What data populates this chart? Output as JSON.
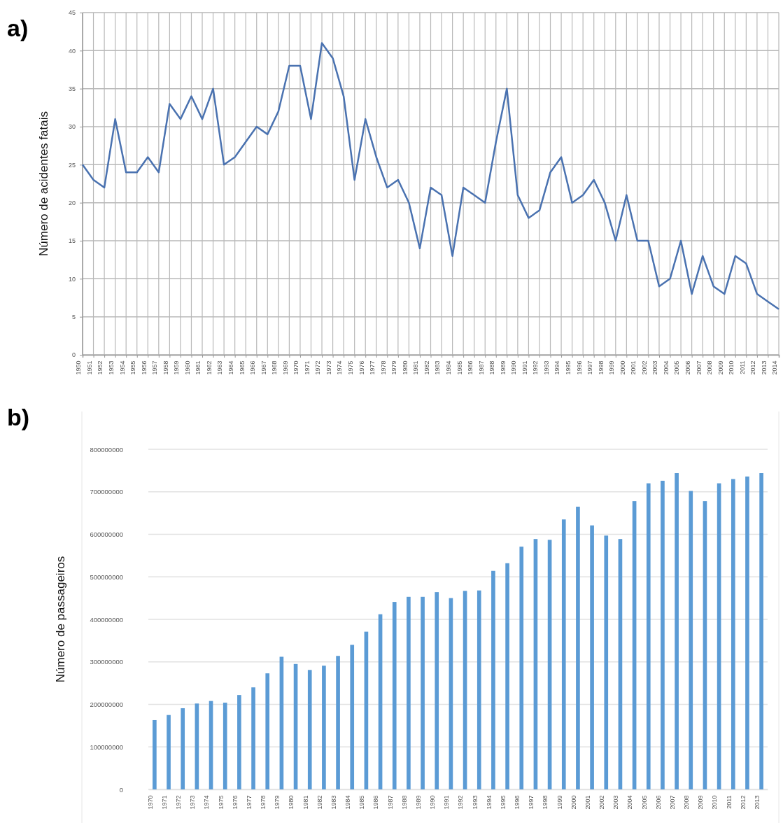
{
  "chart_data": [
    {
      "type": "line",
      "title": "a)",
      "ylabel": "Número de acidentes fatais",
      "grid": true,
      "ylim": [
        0,
        45
      ],
      "yticks": [
        0,
        5,
        10,
        15,
        20,
        25,
        30,
        35,
        40,
        45
      ],
      "categories": [
        "1950",
        "1951",
        "1952",
        "1953",
        "1954",
        "1955",
        "1956",
        "1957",
        "1958",
        "1959",
        "1960",
        "1961",
        "1962",
        "1963",
        "1964",
        "1965",
        "1966",
        "1967",
        "1968",
        "1969",
        "1970",
        "1971",
        "1972",
        "1973",
        "1974",
        "1975",
        "1976",
        "1977",
        "1978",
        "1979",
        "1980",
        "1981",
        "1982",
        "1983",
        "1984",
        "1985",
        "1986",
        "1987",
        "1988",
        "1989",
        "1990",
        "1991",
        "1992",
        "1993",
        "1994",
        "1995",
        "1996",
        "1997",
        "1998",
        "1999",
        "2000",
        "2001",
        "2002",
        "2003",
        "2004",
        "2005",
        "2006",
        "2007",
        "2008",
        "2009",
        "2010",
        "2011",
        "2012",
        "2013",
        "2014"
      ],
      "series": [
        {
          "color": "#4a72b0",
          "values": [
            25,
            23,
            22,
            31,
            24,
            24,
            26,
            24,
            33,
            31,
            34,
            31,
            35,
            25,
            26,
            28,
            30,
            29,
            32,
            38,
            38,
            31,
            41,
            39,
            34,
            23,
            31,
            26,
            22,
            23,
            20,
            14,
            22,
            21,
            13,
            22,
            21,
            20,
            28,
            35,
            21,
            18,
            19,
            24,
            26,
            20,
            21,
            23,
            20,
            15,
            21,
            15,
            15,
            9,
            10,
            15,
            8,
            13,
            9,
            8,
            13,
            12,
            8,
            7,
            6
          ]
        }
      ]
    },
    {
      "type": "bar",
      "title": "b)",
      "ylabel": "Número de passageiros",
      "grid": "y",
      "ylim": [
        0,
        800000000
      ],
      "yticks": [
        0,
        100000000,
        200000000,
        300000000,
        400000000,
        500000000,
        600000000,
        700000000,
        800000000
      ],
      "categories": [
        "1970",
        "1971",
        "1972",
        "1973",
        "1974",
        "1975",
        "1976",
        "1977",
        "1978",
        "1979",
        "1980",
        "1981",
        "1982",
        "1983",
        "1984",
        "1985",
        "1986",
        "1987",
        "1988",
        "1989",
        "1990",
        "1991",
        "1992",
        "1993",
        "1994",
        "1995",
        "1996",
        "1997",
        "1998",
        "1999",
        "2000",
        "2001",
        "2002",
        "2003",
        "2004",
        "2005",
        "2006",
        "2007",
        "2008",
        "2009",
        "2010",
        "2011",
        "2012",
        "2013"
      ],
      "series": [
        {
          "color": "#5b9bd5",
          "values": [
            163000000,
            175000000,
            191000000,
            202000000,
            208000000,
            204000000,
            222000000,
            240000000,
            273000000,
            312000000,
            295000000,
            281000000,
            291000000,
            314000000,
            340000000,
            371000000,
            412000000,
            441000000,
            453000000,
            453000000,
            464000000,
            450000000,
            467000000,
            468000000,
            514000000,
            532000000,
            571000000,
            589000000,
            587000000,
            635000000,
            665000000,
            621000000,
            597000000,
            589000000,
            678000000,
            720000000,
            726000000,
            744000000,
            702000000,
            678000000,
            720000000,
            730000000,
            736000000,
            744000000
          ]
        }
      ]
    }
  ]
}
